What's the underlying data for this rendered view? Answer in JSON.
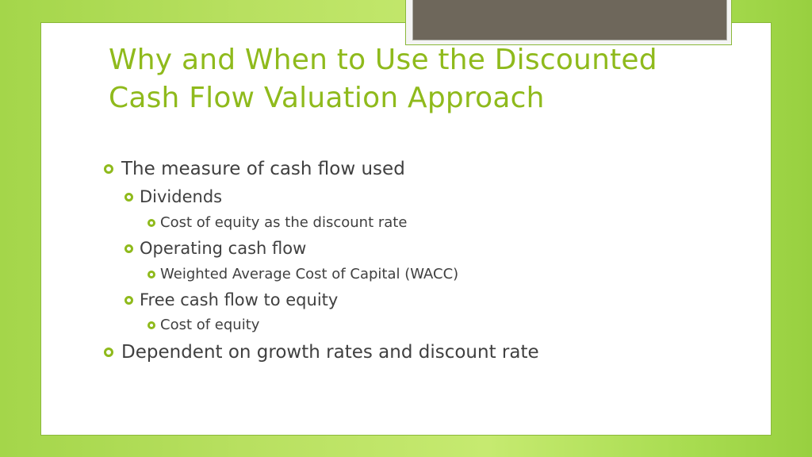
{
  "slide": {
    "title_line1": "Why and When to Use the Discounted",
    "title_line2": "Cash Flow Valuation Approach",
    "bullets": [
      {
        "level": 1,
        "text": "The measure of cash flow used"
      },
      {
        "level": 2,
        "text": "Dividends"
      },
      {
        "level": 3,
        "text": "Cost of equity as the discount rate"
      },
      {
        "level": 2,
        "text": "Operating cash flow"
      },
      {
        "level": 3,
        "text": "Weighted Average Cost of Capital (WACC)"
      },
      {
        "level": 2,
        "text": "Free cash flow to equity"
      },
      {
        "level": 3,
        "text": "Cost of equity"
      },
      {
        "level": 1,
        "text": "Dependent on growth rates and discount rate"
      }
    ],
    "colors": {
      "accent": "#8fba1c",
      "text": "#404040",
      "placeholder_box": "#6e675b"
    },
    "bullet_icon": "hollow-circle-bullet-icon"
  }
}
